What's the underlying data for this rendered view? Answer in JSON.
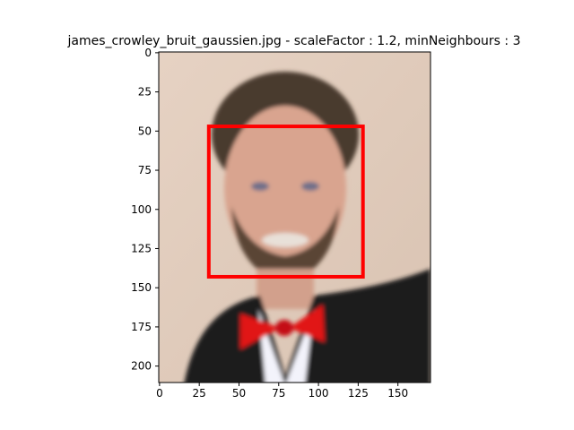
{
  "chart_data": {
    "type": "image",
    "title": "james_crowley_bruit_gaussien.jpg - scaleFactor : 1.2, minNeighbours : 3",
    "xlabel": "",
    "ylabel": "",
    "image_size": [
      171,
      211
    ],
    "xlim": [
      -0.5,
      170.5
    ],
    "ylim": [
      210.5,
      -0.5
    ],
    "x_ticks": [
      0,
      25,
      50,
      75,
      100,
      125,
      150
    ],
    "y_ticks": [
      0,
      25,
      50,
      75,
      100,
      125,
      150,
      175,
      200
    ],
    "detections": [
      {
        "label": "face",
        "x": 31,
        "y": 47,
        "width": 97,
        "height": 96,
        "color": "#ff0000"
      }
    ],
    "grid": false
  }
}
